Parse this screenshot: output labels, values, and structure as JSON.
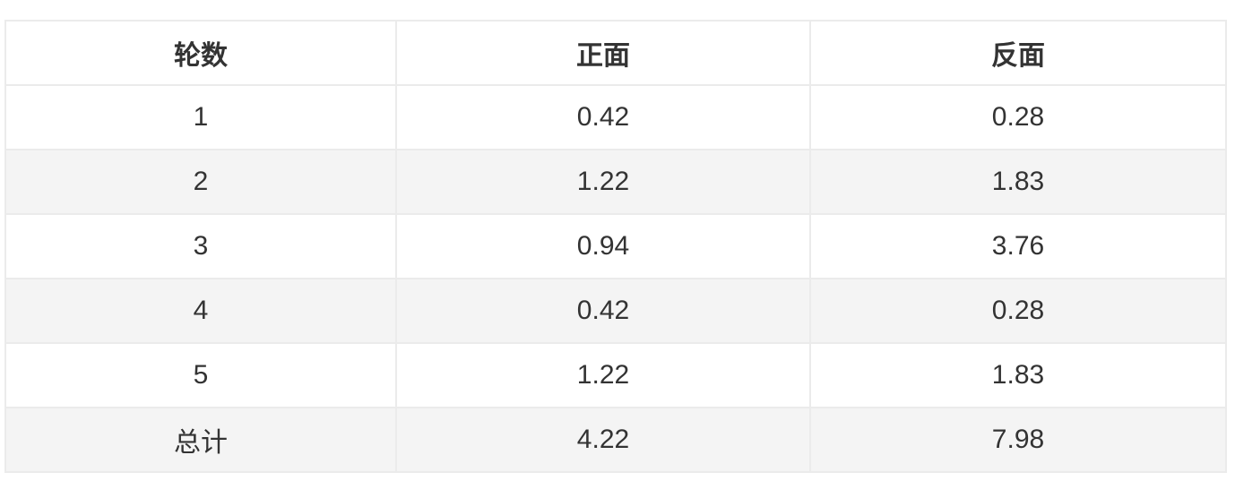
{
  "table": {
    "headers": [
      "轮数",
      "正面",
      "反面"
    ],
    "rows": [
      [
        "1",
        "0.42",
        "0.28"
      ],
      [
        "2",
        "1.22",
        "1.83"
      ],
      [
        "3",
        "0.94",
        "3.76"
      ],
      [
        "4",
        "0.42",
        "0.28"
      ],
      [
        "5",
        "1.22",
        "1.83"
      ],
      [
        "总计",
        "4.22",
        "7.98"
      ]
    ]
  }
}
